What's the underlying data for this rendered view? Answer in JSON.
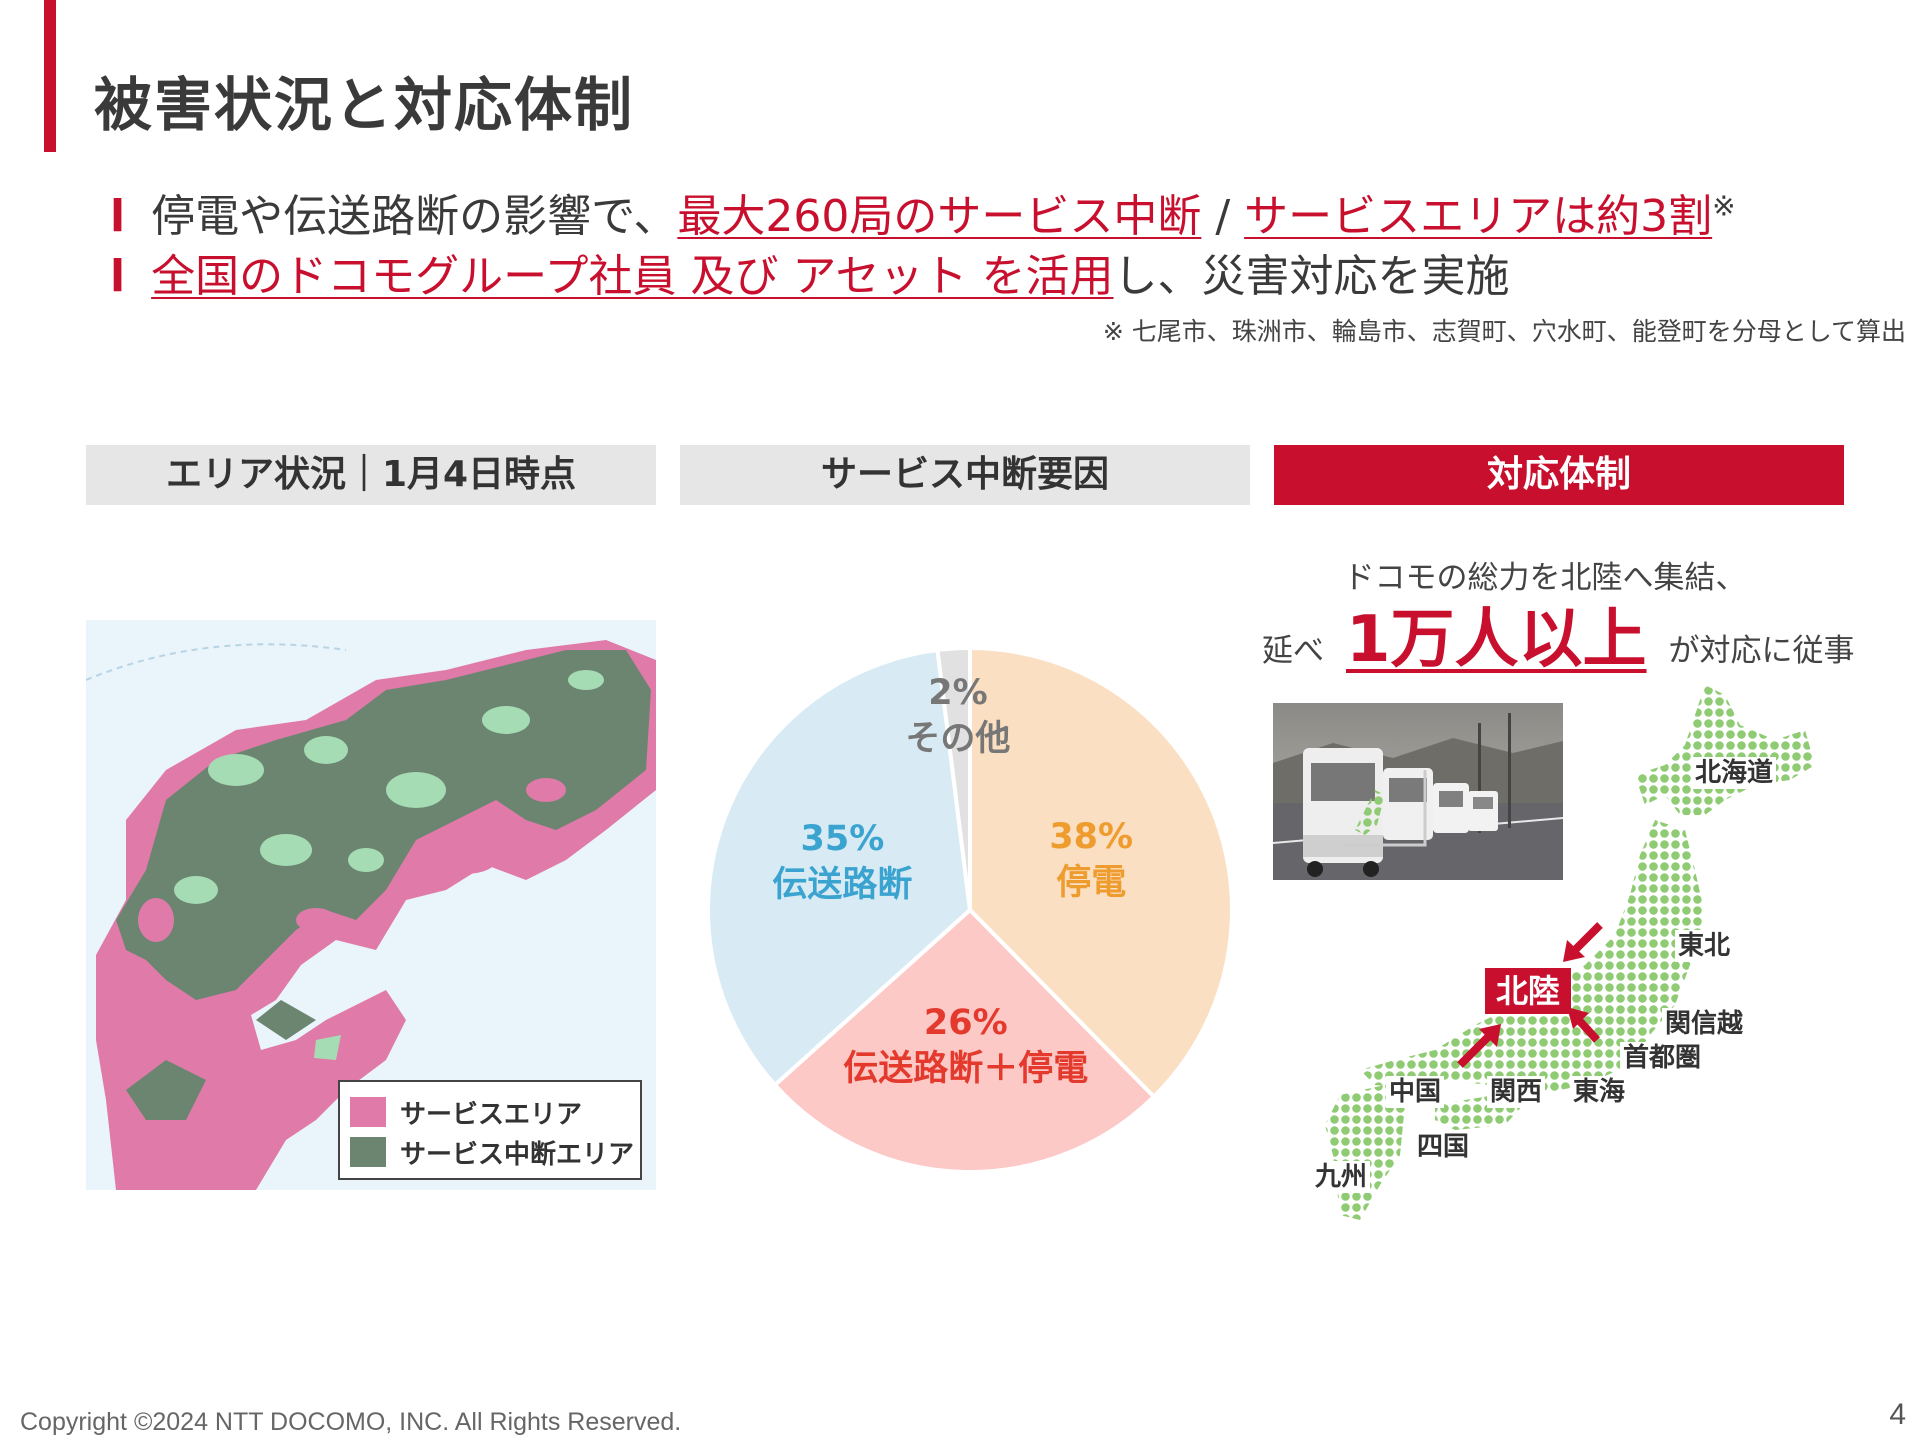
{
  "header": {
    "title": "被害状況と対応体制"
  },
  "bullets": {
    "b1": {
      "mark": "l",
      "pre": "停電や伝送路断の影響で、",
      "hl1": "最大260局のサービス中断",
      "sep": " / ",
      "hl2": "サービスエリアは約3割",
      "sup": "※"
    },
    "b2": {
      "mark": "l",
      "hl": "全国のドコモグループ社員 及び アセット を活用",
      "post": "し、災害対応を実施"
    },
    "footnote": "※ 七尾市、珠洲市、輪島市、志賀町、穴水町、能登町を分母として算出"
  },
  "sections": {
    "area": "エリア状況｜1月4日時点",
    "cause": "サービス中断要因",
    "response": "対応体制"
  },
  "map_legend": {
    "service_area": {
      "label": "サービスエリア",
      "color": "#e07aa8"
    },
    "interrupted_area": {
      "label": "サービス中断エリア",
      "color": "#6b8570"
    }
  },
  "chart_data": {
    "type": "pie",
    "title": "サービス中断要因",
    "slices": [
      {
        "label": "停電",
        "value": 38,
        "text": "38%",
        "color": "#fbdfc2",
        "text_color": "#ef9c2f"
      },
      {
        "label": "伝送路断＋停電",
        "value": 26,
        "text": "26%",
        "color": "#fcc9c6",
        "text_color": "#e43a2e"
      },
      {
        "label": "伝送路断",
        "value": 35,
        "text": "35%",
        "color": "#d8ebf4",
        "text_color": "#3aa3d0"
      },
      {
        "label": "その他",
        "value": 2,
        "text": "2%",
        "color": "#e1e1e1",
        "text_color": "#777777"
      }
    ]
  },
  "response": {
    "line1": "ドコモの総力を北陸へ集結、",
    "pre": "延べ",
    "big": "1万人以上",
    "post": "が対応に従事"
  },
  "regions": {
    "hokkaido": "北海道",
    "tohoku": "東北",
    "hokuriku": "北陸",
    "kanshinetsu": "関信越",
    "shutoken": "首都圏",
    "chugoku": "中国",
    "kansai": "関西",
    "tokai": "東海",
    "shikoku": "四国",
    "kyushu": "九州"
  },
  "footer": {
    "copyright": "Copyright ©2024 NTT DOCOMO, INC. All Rights Reserved.",
    "page": "4"
  }
}
